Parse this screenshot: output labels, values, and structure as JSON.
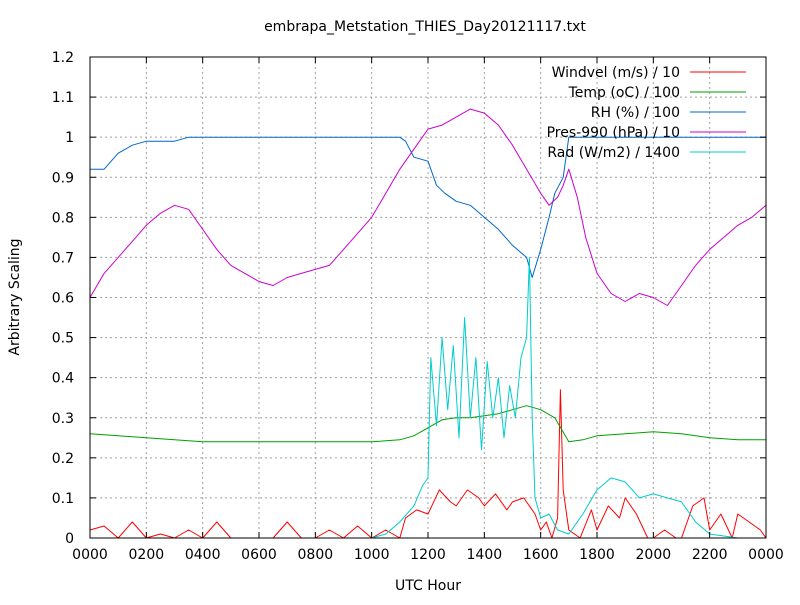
{
  "chart_data": {
    "type": "line",
    "title": "embrapa_Metstation_THIES_Day20121117.txt",
    "xlabel": "UTC Hour",
    "ylabel": "Arbitrary Scaling",
    "xlim": [
      0,
      24
    ],
    "ylim": [
      0,
      1.2
    ],
    "x_ticks": [
      {
        "value": 0,
        "label": "0000"
      },
      {
        "value": 2,
        "label": "0200"
      },
      {
        "value": 4,
        "label": "0400"
      },
      {
        "value": 6,
        "label": "0600"
      },
      {
        "value": 8,
        "label": "0800"
      },
      {
        "value": 10,
        "label": "1000"
      },
      {
        "value": 12,
        "label": "1200"
      },
      {
        "value": 14,
        "label": "1400"
      },
      {
        "value": 16,
        "label": "1600"
      },
      {
        "value": 18,
        "label": "1800"
      },
      {
        "value": 20,
        "label": "2000"
      },
      {
        "value": 22,
        "label": "2200"
      },
      {
        "value": 24,
        "label": "0000"
      }
    ],
    "y_ticks": [
      {
        "value": 0,
        "label": "0"
      },
      {
        "value": 0.1,
        "label": "0.1"
      },
      {
        "value": 0.2,
        "label": "0.2"
      },
      {
        "value": 0.3,
        "label": "0.3"
      },
      {
        "value": 0.4,
        "label": "0.4"
      },
      {
        "value": 0.5,
        "label": "0.5"
      },
      {
        "value": 0.6,
        "label": "0.6"
      },
      {
        "value": 0.7,
        "label": "0.7"
      },
      {
        "value": 0.8,
        "label": "0.8"
      },
      {
        "value": 0.9,
        "label": "0.9"
      },
      {
        "value": 1.0,
        "label": "1"
      },
      {
        "value": 1.1,
        "label": "1.1"
      },
      {
        "value": 1.2,
        "label": "1.2"
      }
    ],
    "grid": true,
    "legend_position": "top-right",
    "series": [
      {
        "name": "Windvel (m/s) / 10",
        "color": "#ff0000",
        "x": [
          0,
          0.5,
          1,
          1.5,
          2,
          2.5,
          3,
          3.5,
          4,
          4.5,
          5,
          5.5,
          6,
          6.5,
          7,
          7.5,
          8,
          8.5,
          9,
          9.5,
          10,
          10.5,
          11,
          11.2,
          11.6,
          12,
          12.4,
          12.8,
          13,
          13.4,
          13.8,
          14,
          14.4,
          14.8,
          15,
          15.4,
          15.8,
          16,
          16.2,
          16.4,
          16.6,
          16.7,
          16.8,
          17,
          17.4,
          17.8,
          18,
          18.4,
          18.8,
          19,
          19.4,
          19.8,
          20,
          20.4,
          20.8,
          21,
          21.4,
          21.8,
          22,
          22.4,
          22.8,
          23,
          23.4,
          23.8,
          24
        ],
        "y": [
          0.02,
          0.03,
          0.0,
          0.04,
          0.0,
          0.01,
          0.0,
          0.02,
          0.0,
          0.04,
          0.0,
          0.0,
          0.0,
          0.0,
          0.04,
          0.0,
          0.0,
          0.02,
          0.0,
          0.03,
          0.0,
          0.02,
          0.0,
          0.05,
          0.07,
          0.06,
          0.12,
          0.09,
          0.08,
          0.12,
          0.1,
          0.08,
          0.11,
          0.07,
          0.09,
          0.1,
          0.06,
          0.02,
          0.04,
          0.0,
          0.05,
          0.37,
          0.12,
          0.02,
          0.0,
          0.07,
          0.02,
          0.08,
          0.05,
          0.1,
          0.06,
          0.0,
          0.0,
          0.02,
          0.0,
          0.0,
          0.08,
          0.1,
          0.02,
          0.06,
          0.0,
          0.06,
          0.04,
          0.02,
          0.0
        ]
      },
      {
        "name": "Temp (oC) / 100",
        "color": "#00a000",
        "x": [
          0,
          1,
          2,
          3,
          4,
          5,
          6,
          7,
          8,
          9,
          10,
          11,
          11.5,
          12,
          12.5,
          13,
          13.5,
          14,
          14.5,
          15,
          15.5,
          16,
          16.5,
          17,
          17.5,
          18,
          19,
          20,
          21,
          22,
          23,
          24
        ],
        "y": [
          0.26,
          0.255,
          0.25,
          0.245,
          0.24,
          0.24,
          0.24,
          0.24,
          0.24,
          0.24,
          0.24,
          0.245,
          0.255,
          0.275,
          0.295,
          0.3,
          0.3,
          0.305,
          0.31,
          0.32,
          0.33,
          0.32,
          0.3,
          0.24,
          0.245,
          0.255,
          0.26,
          0.265,
          0.26,
          0.25,
          0.245,
          0.245
        ]
      },
      {
        "name": "RH (%) / 100",
        "color": "#0066cc",
        "x": [
          0,
          0.5,
          1,
          1.5,
          2,
          2.5,
          3,
          3.5,
          4,
          5,
          6,
          7,
          8,
          9,
          10,
          11,
          11.2,
          11.5,
          12,
          12.3,
          12.6,
          13,
          13.5,
          14,
          14.5,
          15,
          15.5,
          15.7,
          16,
          16.3,
          16.5,
          16.8,
          17,
          18,
          19,
          20,
          21,
          22,
          23,
          24
        ],
        "y": [
          0.92,
          0.92,
          0.96,
          0.98,
          0.99,
          0.99,
          0.99,
          1.0,
          1.0,
          1.0,
          1.0,
          1.0,
          1.0,
          1.0,
          1.0,
          1.0,
          0.99,
          0.95,
          0.94,
          0.88,
          0.86,
          0.84,
          0.83,
          0.8,
          0.77,
          0.73,
          0.7,
          0.65,
          0.72,
          0.8,
          0.86,
          0.9,
          1.0,
          1.0,
          1.0,
          1.0,
          1.0,
          1.0,
          1.0,
          1.0
        ]
      },
      {
        "name": "Pres-990 (hPa) / 10",
        "color": "#cc00cc",
        "x": [
          0,
          0.5,
          1,
          1.5,
          2,
          2.5,
          3,
          3.5,
          4,
          4.5,
          5,
          5.5,
          6,
          6.5,
          7,
          7.5,
          8,
          8.5,
          9,
          9.5,
          10,
          10.5,
          11,
          11.5,
          12,
          12.5,
          13,
          13.5,
          14,
          14.5,
          15,
          15.5,
          16,
          16.3,
          16.6,
          16.8,
          17,
          17.3,
          17.6,
          18,
          18.5,
          19,
          19.5,
          20,
          20.5,
          21,
          21.5,
          22,
          22.5,
          23,
          23.5,
          24
        ],
        "y": [
          0.6,
          0.66,
          0.7,
          0.74,
          0.78,
          0.81,
          0.83,
          0.82,
          0.77,
          0.72,
          0.68,
          0.66,
          0.64,
          0.63,
          0.65,
          0.66,
          0.67,
          0.68,
          0.72,
          0.76,
          0.8,
          0.86,
          0.92,
          0.97,
          1.02,
          1.03,
          1.05,
          1.07,
          1.06,
          1.03,
          0.98,
          0.92,
          0.86,
          0.83,
          0.85,
          0.88,
          0.92,
          0.85,
          0.75,
          0.66,
          0.61,
          0.59,
          0.61,
          0.6,
          0.58,
          0.63,
          0.68,
          0.72,
          0.75,
          0.78,
          0.8,
          0.83
        ]
      },
      {
        "name": "Rad (W/m2) / 1400",
        "color": "#00cccc",
        "x": [
          0,
          10,
          10.5,
          11,
          11.5,
          11.8,
          12,
          12.1,
          12.3,
          12.5,
          12.7,
          12.9,
          13.1,
          13.3,
          13.5,
          13.7,
          13.9,
          14.1,
          14.3,
          14.5,
          14.7,
          14.9,
          15.1,
          15.3,
          15.5,
          15.6,
          15.7,
          15.8,
          16,
          16.3,
          16.6,
          17,
          17.5,
          18,
          18.5,
          19,
          19.5,
          20,
          20.5,
          21,
          21.5,
          22,
          22.5,
          23,
          24
        ],
        "y": [
          0,
          0,
          0.01,
          0.04,
          0.08,
          0.13,
          0.15,
          0.45,
          0.28,
          0.5,
          0.32,
          0.48,
          0.25,
          0.55,
          0.3,
          0.45,
          0.22,
          0.44,
          0.3,
          0.4,
          0.25,
          0.38,
          0.3,
          0.45,
          0.5,
          0.7,
          0.3,
          0.1,
          0.05,
          0.06,
          0.02,
          0.01,
          0.06,
          0.12,
          0.15,
          0.14,
          0.1,
          0.11,
          0.1,
          0.09,
          0.04,
          0.01,
          0.005,
          0.0,
          0.0
        ]
      }
    ]
  }
}
